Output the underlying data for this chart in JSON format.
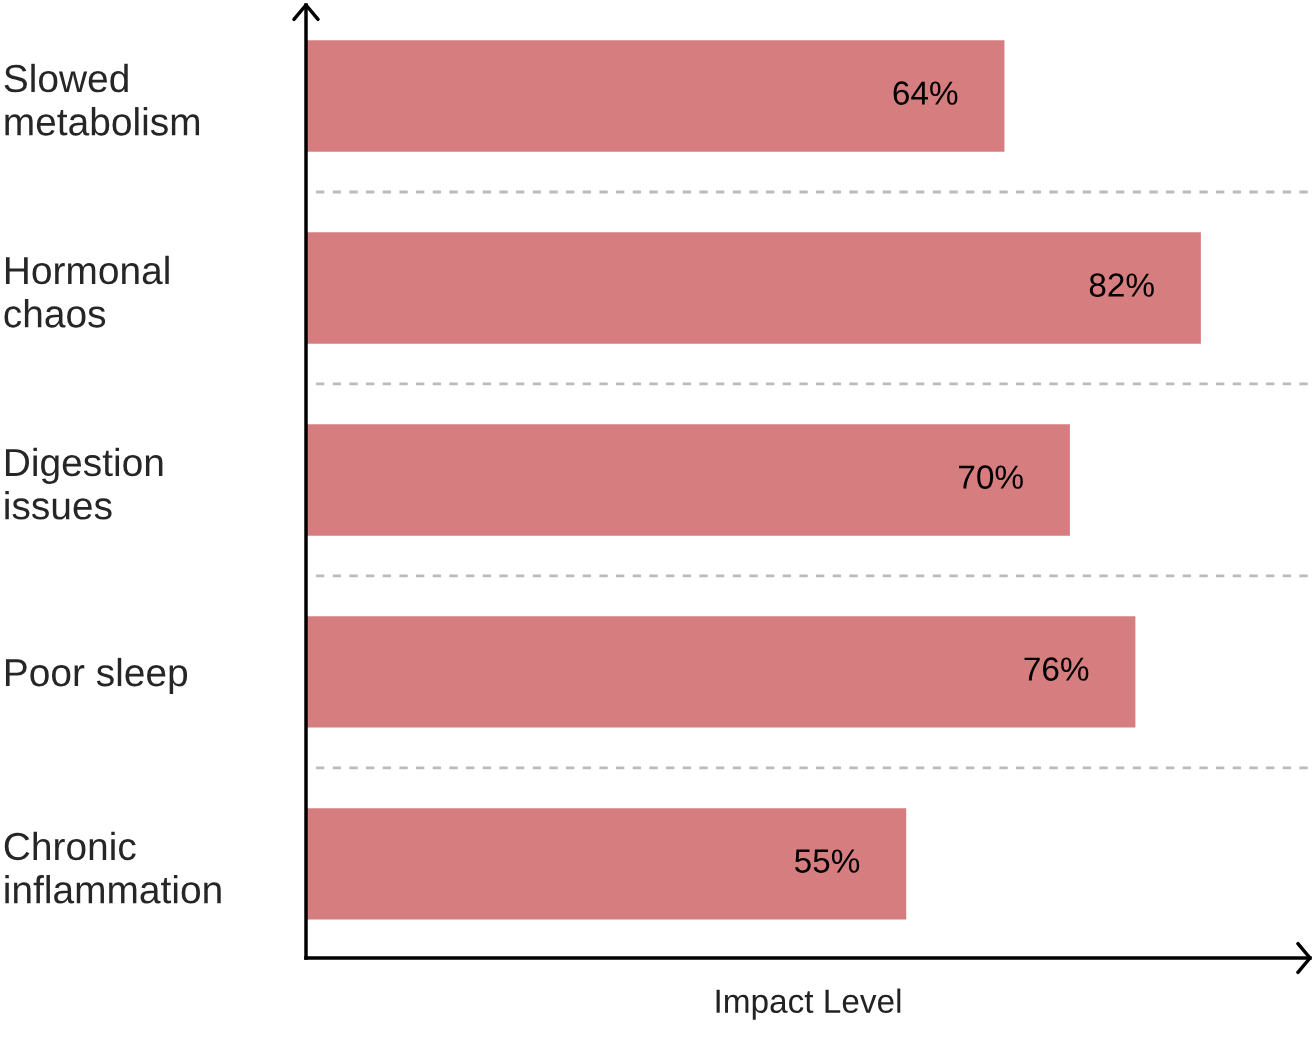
{
  "chart_data": {
    "type": "bar",
    "orientation": "horizontal",
    "xlabel": "Impact Level",
    "categories": [
      "Slowed\nmetabolism",
      "Hormonal\nchaos",
      "Digestion\nissues",
      "Poor sleep",
      "Chronic\ninflammation"
    ],
    "values": [
      64,
      82,
      70,
      76,
      55
    ],
    "value_labels": [
      "64%",
      "82%",
      "70%",
      "76%",
      "55%"
    ],
    "color": "#d67e7f",
    "xlim": [
      0,
      92
    ],
    "tick_labels": "y",
    "grid": "y"
  }
}
